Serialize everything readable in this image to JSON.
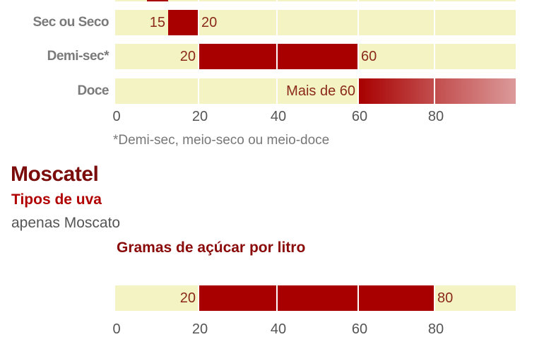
{
  "chart_data": [
    {
      "type": "bar",
      "orientation": "horizontal-range",
      "ticks": [
        0,
        20,
        40,
        60,
        80
      ],
      "xlim": [
        0,
        100
      ],
      "colors": {
        "track": "#f4f3c4",
        "bar": "#a80000",
        "fade_end": "#dc9a9a",
        "value_text": "#8b2a1a"
      },
      "rows": [
        {
          "label": "",
          "range": [
            9,
            15
          ],
          "low_label": "",
          "high_label": "",
          "partial": true
        },
        {
          "label": "Sec ou Seco",
          "range": [
            15,
            20
          ],
          "low_label": "15",
          "high_label": "20"
        },
        {
          "label": "Demi-sec*",
          "range": [
            20,
            60
          ],
          "low_label": "20",
          "high_label": "60"
        },
        {
          "label": "Doce",
          "range": [
            60,
            100
          ],
          "low_label": "Mais de 60",
          "high_label": "",
          "fade": true
        }
      ],
      "footnote": "*Demi-sec, meio-seco ou meio-doce"
    },
    {
      "type": "bar",
      "orientation": "horizontal-range",
      "title": "Gramas de açúcar por litro",
      "ticks": [
        0,
        20,
        40,
        60,
        80
      ],
      "xlim": [
        0,
        100
      ],
      "rows": [
        {
          "label": "",
          "range": [
            20,
            80
          ],
          "low_label": "20",
          "high_label": "80"
        }
      ]
    }
  ],
  "section": {
    "title": "Moscatel",
    "grapes_heading": "Tipos de uva",
    "grapes_value": "apenas Moscato"
  }
}
